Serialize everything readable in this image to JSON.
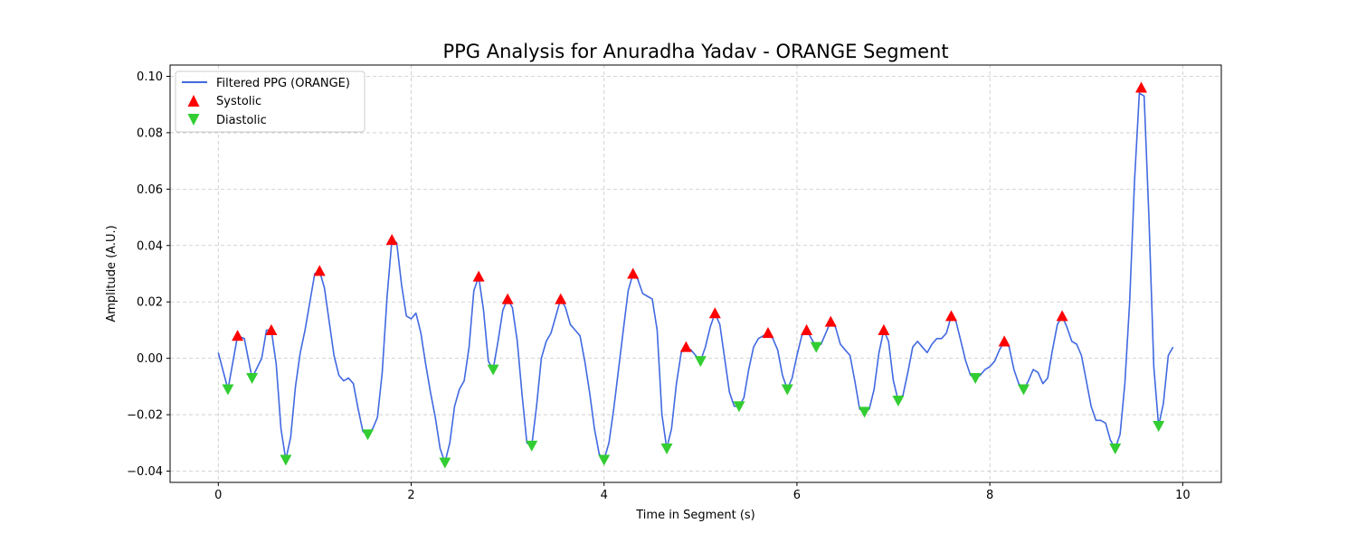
{
  "chart_data": {
    "type": "line",
    "title": "PPG Analysis for Anuradha Yadav - ORANGE Segment",
    "xlabel": "Time in Segment (s)",
    "ylabel": "Amplitude (A.U.)",
    "xlim": [
      -0.5,
      10.4
    ],
    "ylim": [
      -0.044,
      0.104
    ],
    "xticks": [
      0,
      2,
      4,
      6,
      8,
      10
    ],
    "xtick_labels": [
      "0",
      "2",
      "4",
      "6",
      "8",
      "10"
    ],
    "yticks": [
      -0.04,
      -0.02,
      0.0,
      0.02,
      0.04,
      0.06,
      0.08,
      0.1
    ],
    "ytick_labels": [
      "−0.04",
      "−0.02",
      "0.00",
      "0.02",
      "0.04",
      "0.06",
      "0.08",
      "0.10"
    ],
    "grid": true,
    "legend_position": "upper-left",
    "colors": {
      "signal": "#4169e1",
      "systolic": "#ff0000",
      "diastolic": "#32cd32"
    },
    "series": [
      {
        "name": "Filtered PPG (ORANGE)",
        "kind": "line",
        "points": [
          [
            0.0,
            0.002
          ],
          [
            0.1,
            -0.011
          ],
          [
            0.2,
            0.008
          ],
          [
            0.27,
            0.007
          ],
          [
            0.35,
            -0.007
          ],
          [
            0.45,
            0.0
          ],
          [
            0.5,
            0.01
          ],
          [
            0.55,
            0.01
          ],
          [
            0.6,
            -0.002
          ],
          [
            0.65,
            -0.025
          ],
          [
            0.7,
            -0.036
          ],
          [
            0.75,
            -0.028
          ],
          [
            0.8,
            -0.01
          ],
          [
            0.85,
            0.002
          ],
          [
            0.9,
            0.01
          ],
          [
            1.0,
            0.03
          ],
          [
            1.05,
            0.031
          ],
          [
            1.1,
            0.025
          ],
          [
            1.15,
            0.013
          ],
          [
            1.2,
            0.001
          ],
          [
            1.25,
            -0.006
          ],
          [
            1.3,
            -0.008
          ],
          [
            1.35,
            -0.007
          ],
          [
            1.4,
            -0.009
          ],
          [
            1.45,
            -0.018
          ],
          [
            1.5,
            -0.026
          ],
          [
            1.55,
            -0.027
          ],
          [
            1.6,
            -0.025
          ],
          [
            1.65,
            -0.021
          ],
          [
            1.7,
            -0.005
          ],
          [
            1.75,
            0.022
          ],
          [
            1.8,
            0.042
          ],
          [
            1.85,
            0.041
          ],
          [
            1.9,
            0.026
          ],
          [
            1.95,
            0.015
          ],
          [
            2.0,
            0.014
          ],
          [
            2.05,
            0.016
          ],
          [
            2.1,
            0.009
          ],
          [
            2.15,
            -0.002
          ],
          [
            2.2,
            -0.012
          ],
          [
            2.25,
            -0.021
          ],
          [
            2.3,
            -0.032
          ],
          [
            2.35,
            -0.037
          ],
          [
            2.4,
            -0.03
          ],
          [
            2.45,
            -0.017
          ],
          [
            2.5,
            -0.011
          ],
          [
            2.55,
            -0.008
          ],
          [
            2.6,
            0.004
          ],
          [
            2.65,
            0.024
          ],
          [
            2.7,
            0.029
          ],
          [
            2.75,
            0.017
          ],
          [
            2.8,
            -0.001
          ],
          [
            2.85,
            -0.004
          ],
          [
            2.9,
            0.006
          ],
          [
            2.95,
            0.017
          ],
          [
            3.0,
            0.021
          ],
          [
            3.05,
            0.018
          ],
          [
            3.1,
            0.006
          ],
          [
            3.15,
            -0.013
          ],
          [
            3.2,
            -0.03
          ],
          [
            3.25,
            -0.031
          ],
          [
            3.3,
            -0.017
          ],
          [
            3.35,
            0.0
          ],
          [
            3.4,
            0.006
          ],
          [
            3.45,
            0.009
          ],
          [
            3.5,
            0.015
          ],
          [
            3.55,
            0.021
          ],
          [
            3.6,
            0.018
          ],
          [
            3.65,
            0.012
          ],
          [
            3.7,
            0.01
          ],
          [
            3.75,
            0.008
          ],
          [
            3.8,
            -0.001
          ],
          [
            3.85,
            -0.012
          ],
          [
            3.9,
            -0.025
          ],
          [
            3.95,
            -0.034
          ],
          [
            4.0,
            -0.036
          ],
          [
            4.05,
            -0.03
          ],
          [
            4.1,
            -0.018
          ],
          [
            4.15,
            -0.004
          ],
          [
            4.2,
            0.01
          ],
          [
            4.25,
            0.024
          ],
          [
            4.3,
            0.03
          ],
          [
            4.35,
            0.028
          ],
          [
            4.4,
            0.023
          ],
          [
            4.45,
            0.022
          ],
          [
            4.5,
            0.021
          ],
          [
            4.55,
            0.01
          ],
          [
            4.6,
            -0.02
          ],
          [
            4.65,
            -0.032
          ],
          [
            4.7,
            -0.025
          ],
          [
            4.75,
            -0.009
          ],
          [
            4.8,
            0.002
          ],
          [
            4.85,
            0.004
          ],
          [
            4.9,
            0.003
          ],
          [
            4.95,
            0.001
          ],
          [
            5.0,
            -0.001
          ],
          [
            5.05,
            0.004
          ],
          [
            5.1,
            0.011
          ],
          [
            5.15,
            0.016
          ],
          [
            5.2,
            0.012
          ],
          [
            5.25,
            0.0
          ],
          [
            5.3,
            -0.012
          ],
          [
            5.35,
            -0.017
          ],
          [
            5.4,
            -0.017
          ],
          [
            5.45,
            -0.014
          ],
          [
            5.5,
            -0.004
          ],
          [
            5.55,
            0.004
          ],
          [
            5.6,
            0.007
          ],
          [
            5.65,
            0.008
          ],
          [
            5.7,
            0.009
          ],
          [
            5.75,
            0.007
          ],
          [
            5.8,
            0.003
          ],
          [
            5.85,
            -0.006
          ],
          [
            5.9,
            -0.011
          ],
          [
            5.95,
            -0.007
          ],
          [
            6.0,
            0.001
          ],
          [
            6.05,
            0.008
          ],
          [
            6.1,
            0.01
          ],
          [
            6.15,
            0.007
          ],
          [
            6.2,
            0.004
          ],
          [
            6.25,
            0.005
          ],
          [
            6.3,
            0.009
          ],
          [
            6.35,
            0.013
          ],
          [
            6.4,
            0.011
          ],
          [
            6.45,
            0.005
          ],
          [
            6.5,
            0.003
          ],
          [
            6.55,
            0.001
          ],
          [
            6.6,
            -0.008
          ],
          [
            6.65,
            -0.018
          ],
          [
            6.7,
            -0.019
          ],
          [
            6.75,
            -0.018
          ],
          [
            6.8,
            -0.011
          ],
          [
            6.85,
            0.002
          ],
          [
            6.9,
            0.01
          ],
          [
            6.95,
            0.006
          ],
          [
            7.0,
            -0.008
          ],
          [
            7.05,
            -0.015
          ],
          [
            7.1,
            -0.013
          ],
          [
            7.15,
            -0.005
          ],
          [
            7.2,
            0.004
          ],
          [
            7.25,
            0.006
          ],
          [
            7.3,
            0.004
          ],
          [
            7.35,
            0.002
          ],
          [
            7.4,
            0.005
          ],
          [
            7.45,
            0.007
          ],
          [
            7.5,
            0.007
          ],
          [
            7.55,
            0.009
          ],
          [
            7.6,
            0.015
          ],
          [
            7.65,
            0.013
          ],
          [
            7.7,
            0.006
          ],
          [
            7.75,
            -0.001
          ],
          [
            7.8,
            -0.006
          ],
          [
            7.85,
            -0.007
          ],
          [
            7.9,
            -0.006
          ],
          [
            7.95,
            -0.004
          ],
          [
            8.0,
            -0.003
          ],
          [
            8.05,
            -0.001
          ],
          [
            8.1,
            0.003
          ],
          [
            8.15,
            0.006
          ],
          [
            8.2,
            0.004
          ],
          [
            8.25,
            -0.004
          ],
          [
            8.3,
            -0.009
          ],
          [
            8.35,
            -0.011
          ],
          [
            8.4,
            -0.008
          ],
          [
            8.45,
            -0.004
          ],
          [
            8.5,
            -0.005
          ],
          [
            8.55,
            -0.009
          ],
          [
            8.6,
            -0.007
          ],
          [
            8.65,
            0.003
          ],
          [
            8.7,
            0.012
          ],
          [
            8.75,
            0.015
          ],
          [
            8.8,
            0.011
          ],
          [
            8.85,
            0.006
          ],
          [
            8.9,
            0.005
          ],
          [
            8.95,
            0.001
          ],
          [
            9.0,
            -0.008
          ],
          [
            9.05,
            -0.017
          ],
          [
            9.1,
            -0.022
          ],
          [
            9.15,
            -0.022
          ],
          [
            9.2,
            -0.023
          ],
          [
            9.25,
            -0.029
          ],
          [
            9.3,
            -0.032
          ],
          [
            9.35,
            -0.027
          ],
          [
            9.4,
            -0.009
          ],
          [
            9.45,
            0.02
          ],
          [
            9.5,
            0.063
          ],
          [
            9.55,
            0.094
          ],
          [
            9.6,
            0.093
          ],
          [
            9.65,
            0.05
          ],
          [
            9.7,
            -0.003
          ],
          [
            9.75,
            -0.024
          ],
          [
            9.8,
            -0.016
          ],
          [
            9.85,
            0.001
          ],
          [
            9.9,
            0.004
          ]
        ]
      },
      {
        "name": "Systolic",
        "kind": "scatter",
        "marker": "triangle-up",
        "points": [
          [
            0.2,
            0.008
          ],
          [
            0.55,
            0.01
          ],
          [
            1.05,
            0.031
          ],
          [
            1.8,
            0.042
          ],
          [
            2.7,
            0.029
          ],
          [
            3.0,
            0.021
          ],
          [
            3.55,
            0.021
          ],
          [
            4.3,
            0.03
          ],
          [
            4.85,
            0.004
          ],
          [
            5.15,
            0.016
          ],
          [
            5.7,
            0.009
          ],
          [
            6.1,
            0.01
          ],
          [
            6.35,
            0.013
          ],
          [
            6.9,
            0.01
          ],
          [
            7.6,
            0.015
          ],
          [
            8.15,
            0.006
          ],
          [
            8.75,
            0.015
          ],
          [
            9.57,
            0.096
          ]
        ]
      },
      {
        "name": "Diastolic",
        "kind": "scatter",
        "marker": "triangle-down",
        "points": [
          [
            0.1,
            -0.011
          ],
          [
            0.35,
            -0.007
          ],
          [
            0.7,
            -0.036
          ],
          [
            1.55,
            -0.027
          ],
          [
            2.35,
            -0.037
          ],
          [
            2.85,
            -0.004
          ],
          [
            3.25,
            -0.031
          ],
          [
            4.0,
            -0.036
          ],
          [
            4.65,
            -0.032
          ],
          [
            5.0,
            -0.001
          ],
          [
            5.4,
            -0.017
          ],
          [
            5.9,
            -0.011
          ],
          [
            6.2,
            0.004
          ],
          [
            6.7,
            -0.019
          ],
          [
            7.05,
            -0.015
          ],
          [
            7.85,
            -0.007
          ],
          [
            8.35,
            -0.011
          ],
          [
            9.3,
            -0.032
          ],
          [
            9.75,
            -0.024
          ]
        ]
      }
    ]
  }
}
